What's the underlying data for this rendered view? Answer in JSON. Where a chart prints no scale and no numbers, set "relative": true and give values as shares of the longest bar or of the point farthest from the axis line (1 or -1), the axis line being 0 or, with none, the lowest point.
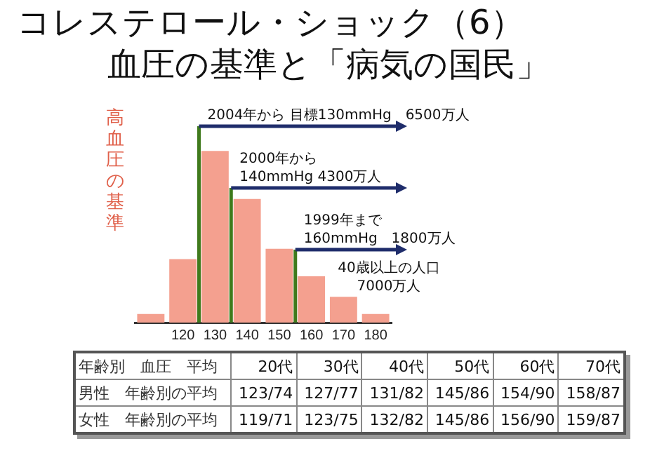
{
  "chart_data": {
    "type": "bar",
    "title": "コレステロール・ショック（6）",
    "subtitle": "血圧の基準と「病気の国民」",
    "ylabel": "高血圧の基準",
    "relative": true,
    "x": [
      110,
      120,
      130,
      140,
      150,
      160,
      170,
      180
    ],
    "values": [
      0.05,
      0.37,
      1,
      0.72,
      0.43,
      0.27,
      0.15,
      0.05
    ],
    "color": "#f4a08f",
    "xlim": [
      105,
      185
    ],
    "xticks": [
      120,
      130,
      140,
      150,
      160,
      170,
      180
    ],
    "ref_lines": [
      {
        "axis": "x",
        "value": 125,
        "label": "2004年から 目標130mmHg　6500万人",
        "color": "#3f7a1c"
      },
      {
        "axis": "x",
        "value": 135,
        "label": "2000年から\n140mmHg 4300万人",
        "color": "#3f7a1c"
      },
      {
        "axis": "x",
        "value": 155,
        "label": "1999年まで\n160mmHg　1800万人",
        "color": "#3f7a1c"
      }
    ],
    "annotations": [
      "40歳以上の人口\n7000万人",
      "年齢別　血圧　平均",
      "20代",
      "30代",
      "40代",
      "50代",
      "60代",
      "70代",
      "男性　年齢別の平均",
      "123/74",
      "127/77",
      "131/82",
      "145/86",
      "154/90",
      "158/87",
      "女性　年齢別の平均",
      "119/71",
      "123/75",
      "132/82",
      "145/86",
      "156/90",
      "159/87"
    ],
    "grid": false,
    "legend": false
  }
}
